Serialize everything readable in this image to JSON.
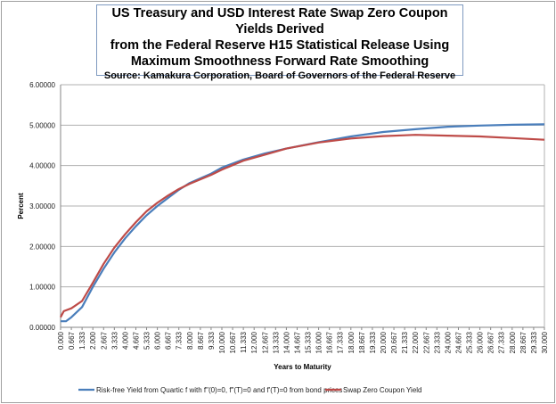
{
  "chart_data": {
    "type": "line",
    "title_lines": [
      "US Treasury and USD Interest Rate Swap Zero Coupon Yields Derived",
      "from the Federal Reserve H15 Statistical Release Using",
      "Maximum Smoothness Forward Rate Smoothing"
    ],
    "subtitle": "Source: Kamakura Corporation, Board of Governors of the Federal Reserve",
    "xlabel": "Years to Maturity",
    "ylabel": "Percent",
    "xlim": [
      0,
      30
    ],
    "ylim": [
      0,
      6
    ],
    "y_ticks": [
      "0.00000",
      "1.00000",
      "2.00000",
      "3.00000",
      "4.00000",
      "5.00000",
      "6.00000"
    ],
    "x_ticks": [
      "0.000",
      "0.667",
      "1.333",
      "2.000",
      "2.667",
      "3.333",
      "4.000",
      "4.667",
      "5.333",
      "6.000",
      "6.667",
      "7.333",
      "8.000",
      "8.667",
      "9.333",
      "10.000",
      "10.667",
      "11.333",
      "12.000",
      "12.667",
      "13.333",
      "14.000",
      "14.667",
      "15.333",
      "16.000",
      "16.667",
      "17.333",
      "18.000",
      "18.667",
      "19.333",
      "20.000",
      "20.667",
      "21.333",
      "22.000",
      "22.667",
      "23.333",
      "24.000",
      "24.667",
      "25.333",
      "26.000",
      "26.667",
      "27.333",
      "28.000",
      "28.667",
      "29.333",
      "30.000"
    ],
    "grid": true,
    "legend_position": "bottom",
    "series": [
      {
        "name": "Risk-free Yield from Quartic f with f\"(0)=0, f\"(T)=0 and f'(T)=0 from bond prices",
        "color": "#4a7ebb",
        "x": [
          0,
          0.333,
          0.667,
          1.333,
          2,
          2.667,
          3.333,
          4,
          4.667,
          5.333,
          6,
          6.667,
          7.333,
          8,
          9.333,
          10,
          11.333,
          12.667,
          14,
          16,
          18,
          20,
          22,
          24,
          26,
          28,
          30
        ],
        "y": [
          0.15,
          0.15,
          0.25,
          0.5,
          1.0,
          1.45,
          1.85,
          2.2,
          2.5,
          2.77,
          3.0,
          3.2,
          3.4,
          3.57,
          3.8,
          3.95,
          4.15,
          4.3,
          4.42,
          4.58,
          4.72,
          4.83,
          4.9,
          4.96,
          4.99,
          5.01,
          5.02
        ]
      },
      {
        "name": "Swap Zero Coupon Yield",
        "color": "#be4b48",
        "x": [
          0,
          0.2,
          0.667,
          1.333,
          2,
          2.667,
          3.333,
          4,
          4.667,
          5.333,
          6,
          6.667,
          7.333,
          8,
          9.333,
          10,
          11.333,
          12.667,
          14,
          16,
          18,
          20,
          21.333,
          22,
          24,
          26,
          28,
          30
        ],
        "y": [
          0.25,
          0.4,
          0.47,
          0.65,
          1.1,
          1.57,
          1.97,
          2.3,
          2.6,
          2.87,
          3.08,
          3.26,
          3.42,
          3.55,
          3.77,
          3.9,
          4.12,
          4.27,
          4.42,
          4.57,
          4.67,
          4.73,
          4.75,
          4.76,
          4.74,
          4.72,
          4.68,
          4.64
        ]
      }
    ]
  }
}
